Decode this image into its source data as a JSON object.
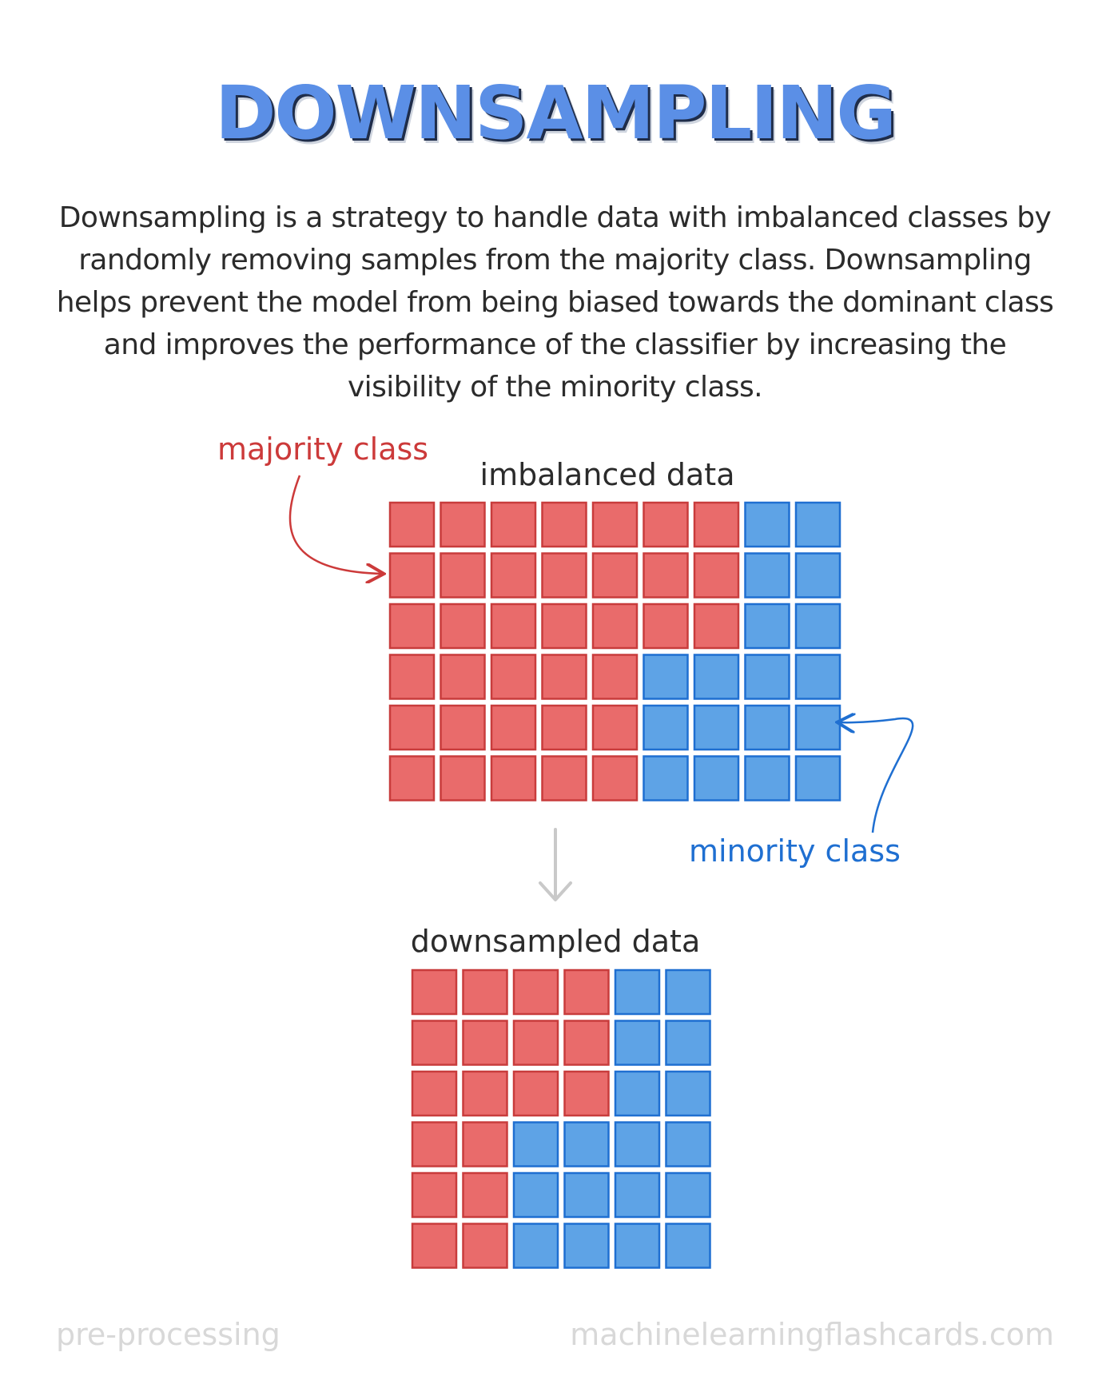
{
  "title": "DOWNSAMPLING",
  "description": "Downsampling is a strategy to handle data with imbalanced classes by randomly removing samples from the majority class. Downsampling helps prevent the model from being biased towards the dominant class and improves the performance of the classifier by increasing the visibility of the minority class.",
  "labels": {
    "imbalanced": "imbalanced data",
    "downsampled": "downsampled data",
    "majority": "majority class",
    "minority": "minority class"
  },
  "footer": {
    "category": "pre-processing",
    "site": "machinelearningflashcards.com"
  },
  "colors": {
    "majority_fill": "#e96b6b",
    "majority_stroke": "#c83c3c",
    "minority_fill": "#5ea3e6",
    "minority_stroke": "#1f6fd1",
    "title": "#5b8fe6",
    "arrow": "#c9c9c9"
  },
  "grids": {
    "imbalanced": {
      "rows": [
        "RRRRRRRBB",
        "RRRRRRRBB",
        "RRRRRRRBB",
        "RRRRRBBBB",
        "RRRRRBBBB",
        "RRRRRBBBB"
      ]
    },
    "downsampled": {
      "rows": [
        "RRRRBB",
        "RRRRBB",
        "RRRRBB",
        "RRBBBB",
        "RRBBBB",
        "RRBBBB"
      ]
    }
  }
}
